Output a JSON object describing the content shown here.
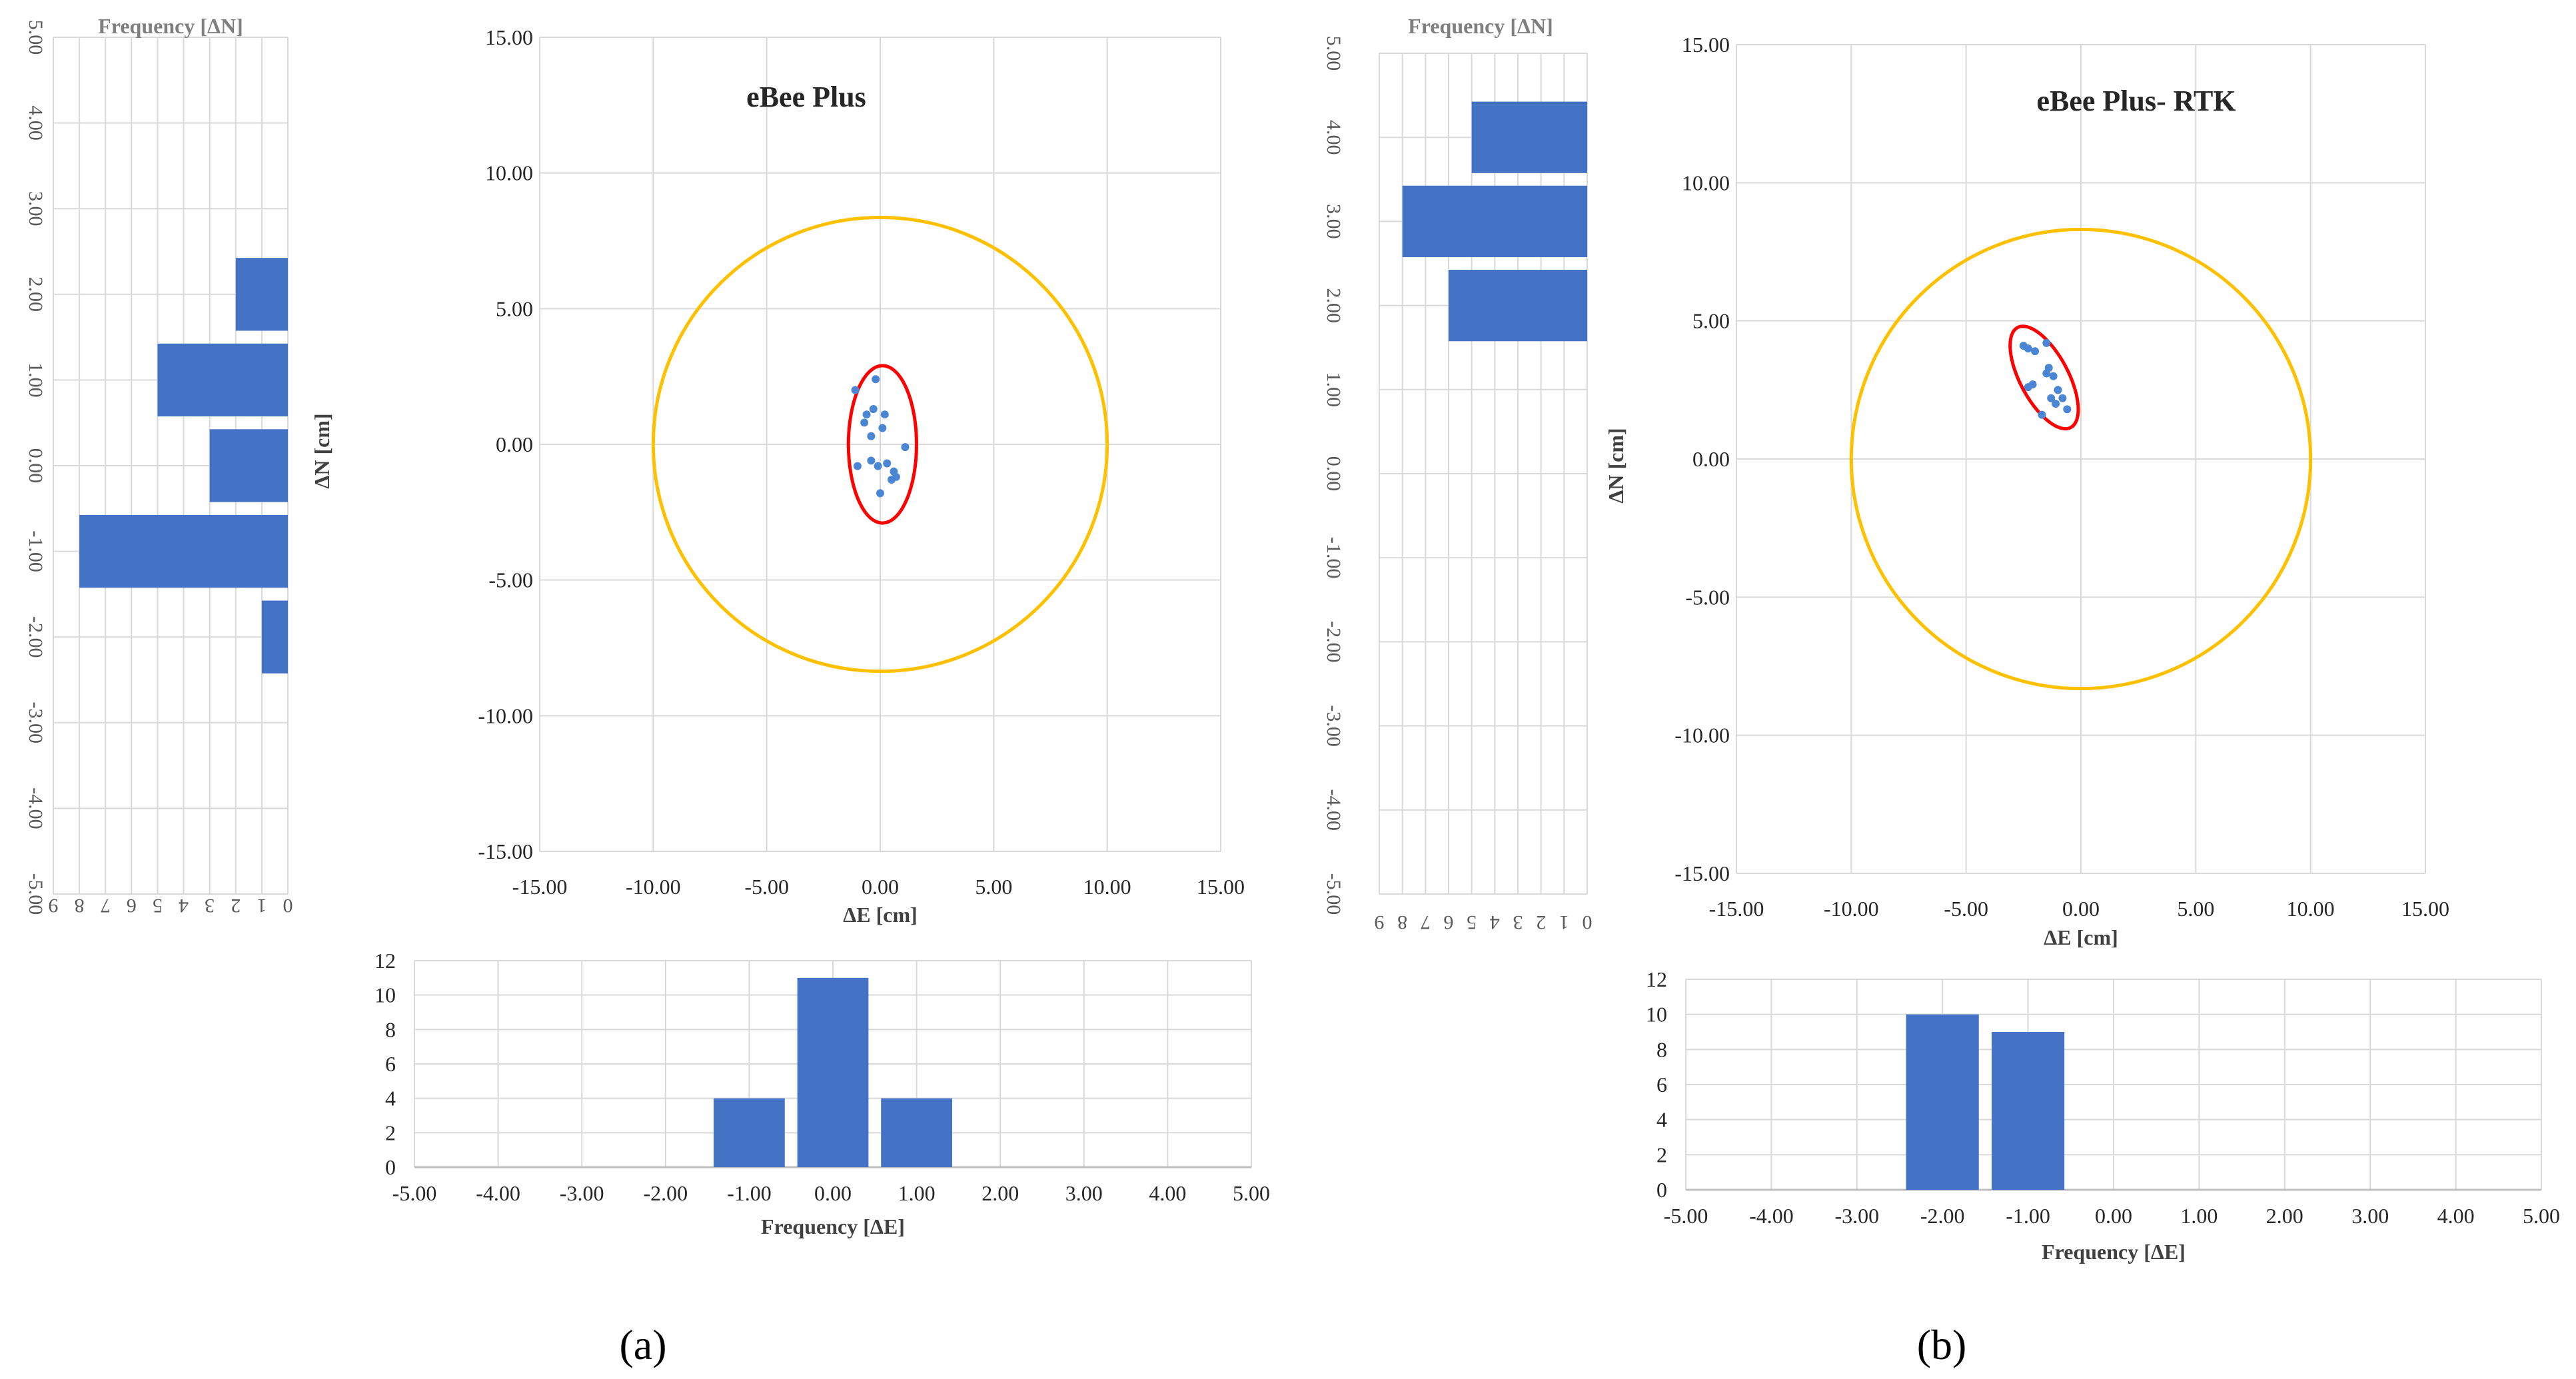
{
  "colors": {
    "bar": "#4472c4",
    "point": "#4a86d4",
    "tolerance_circle": "#ffc000",
    "error_ellipse": "#ff0000",
    "grid": "#d9d9d9",
    "axis": "#bfbfbf"
  },
  "chart_data": [
    {
      "panel": "a",
      "panel_label": "(a)",
      "scatter": {
        "type": "scatter",
        "title": "eBee Plus",
        "xlabel": "ΔE [cm]",
        "ylabel": "ΔN [cm]",
        "xlim": [
          -15,
          15
        ],
        "ylim": [
          -15,
          15
        ],
        "x_ticks": [
          "-15.00",
          "-10.00",
          "-5.00",
          "0.00",
          "5.00",
          "10.00",
          "15.00"
        ],
        "y_ticks": [
          "-15.00",
          "-10.00",
          "-5.00",
          "0.00",
          "5.00",
          "10.00",
          "15.00"
        ],
        "tolerance_circle": {
          "center": [
            0,
            0
          ],
          "radius": 10
        },
        "error_ellipse": {
          "center": [
            0.1,
            0
          ],
          "rx": 1.5,
          "ry": 2.9
        },
        "points": [
          [
            -1.1,
            2.0
          ],
          [
            -0.2,
            2.4
          ],
          [
            -0.3,
            1.3
          ],
          [
            -0.6,
            1.1
          ],
          [
            0.2,
            1.1
          ],
          [
            -0.7,
            0.8
          ],
          [
            0.1,
            0.6
          ],
          [
            -0.4,
            0.3
          ],
          [
            1.1,
            -0.1
          ],
          [
            -1.0,
            -0.8
          ],
          [
            -0.4,
            -0.6
          ],
          [
            -0.1,
            -0.8
          ],
          [
            0.3,
            -0.7
          ],
          [
            0.6,
            -1.0
          ],
          [
            0.7,
            -1.2
          ],
          [
            0.5,
            -1.3
          ],
          [
            0.0,
            -1.8
          ]
        ]
      },
      "hist_dN": {
        "type": "bar",
        "orientation": "horizontal",
        "title": "Frequency [ΔN]",
        "categories": [
          -2.0,
          -1.0,
          0.0,
          1.0,
          2.0
        ],
        "values": [
          1,
          8,
          3,
          5,
          2
        ],
        "ylim": [
          -5,
          5
        ],
        "xlim": [
          0,
          9
        ],
        "value_ticks": [
          "0",
          "1",
          "2",
          "3",
          "4",
          "5",
          "6",
          "7",
          "8",
          "9"
        ],
        "category_ticks": [
          "-5.00",
          "-4.00",
          "-3.00",
          "-2.00",
          "-1.00",
          "0.00",
          "1.00",
          "2.00",
          "3.00",
          "4.00",
          "5.00"
        ]
      },
      "hist_dE": {
        "type": "bar",
        "xlabel": "Frequency [ΔE]",
        "categories": [
          -1.0,
          0.0,
          1.0
        ],
        "values": [
          4,
          11,
          4
        ],
        "xlim": [
          -5,
          5
        ],
        "ylim": [
          0,
          12
        ],
        "x_ticks": [
          "-5.00",
          "-4.00",
          "-3.00",
          "-2.00",
          "-1.00",
          "0.00",
          "1.00",
          "2.00",
          "3.00",
          "4.00",
          "5.00"
        ],
        "y_ticks": [
          "0",
          "2",
          "4",
          "6",
          "8",
          "10",
          "12"
        ]
      }
    },
    {
      "panel": "b",
      "panel_label": "(b)",
      "scatter": {
        "type": "scatter",
        "title": "eBee Plus- RTK",
        "xlabel": "ΔE [cm]",
        "ylabel": "ΔN [cm]",
        "xlim": [
          -15,
          15
        ],
        "ylim": [
          -15,
          15
        ],
        "x_ticks": [
          "-15.00",
          "-10.00",
          "-5.00",
          "0.00",
          "5.00",
          "10.00",
          "15.00"
        ],
        "y_ticks": [
          "-15.00",
          "-10.00",
          "-5.00",
          "0.00",
          "5.00",
          "10.00",
          "15.00"
        ],
        "tolerance_circle": {
          "center": [
            0,
            0
          ],
          "radius": 10
        },
        "error_ellipse": {
          "center": [
            -1.6,
            2.95
          ],
          "rx": 1.05,
          "ry": 2.05,
          "rotation": -28
        },
        "points": [
          [
            -2.5,
            4.1
          ],
          [
            -2.3,
            4.0
          ],
          [
            -2.0,
            3.9
          ],
          [
            -1.5,
            4.2
          ],
          [
            -1.4,
            3.3
          ],
          [
            -1.5,
            3.1
          ],
          [
            -1.2,
            3.0
          ],
          [
            -2.1,
            2.7
          ],
          [
            -2.3,
            2.6
          ],
          [
            -1.0,
            2.5
          ],
          [
            -1.3,
            2.2
          ],
          [
            -0.8,
            2.2
          ],
          [
            -1.1,
            2.0
          ],
          [
            -0.6,
            1.8
          ],
          [
            -1.7,
            1.6
          ]
        ]
      },
      "hist_dN": {
        "type": "bar",
        "orientation": "horizontal",
        "title": "Frequency [ΔN]",
        "categories": [
          2.0,
          3.0,
          4.0
        ],
        "values": [
          6,
          8,
          5
        ],
        "ylim": [
          -5,
          5
        ],
        "xlim": [
          0,
          9
        ],
        "value_ticks": [
          "0",
          "1",
          "2",
          "3",
          "4",
          "5",
          "6",
          "7",
          "8",
          "9"
        ],
        "category_ticks": [
          "-5.00",
          "-4.00",
          "-3.00",
          "-2.00",
          "-1.00",
          "0.00",
          "1.00",
          "2.00",
          "3.00",
          "4.00",
          "5.00"
        ]
      },
      "hist_dE": {
        "type": "bar",
        "xlabel": "Frequency [ΔE]",
        "categories": [
          -2.0,
          -1.0
        ],
        "values": [
          10,
          9
        ],
        "xlim": [
          -5,
          5
        ],
        "ylim": [
          0,
          12
        ],
        "x_ticks": [
          "-5.00",
          "-4.00",
          "-3.00",
          "-2.00",
          "-1.00",
          "0.00",
          "1.00",
          "2.00",
          "3.00",
          "4.00",
          "5.00"
        ],
        "y_ticks": [
          "0",
          "2",
          "4",
          "6",
          "8",
          "10",
          "12"
        ]
      }
    }
  ]
}
